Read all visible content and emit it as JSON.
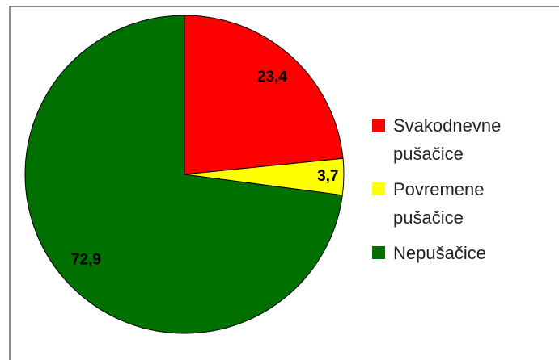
{
  "chart_data": {
    "type": "pie",
    "categories": [
      "Svakodnevne pušačice",
      "Povremene pušačice",
      "Nepušačice"
    ],
    "values": [
      23.4,
      3.7,
      72.9
    ],
    "value_labels": [
      "23,4",
      "3,7",
      "72,9"
    ],
    "colors": [
      "#ff0000",
      "#ffff00",
      "#007000"
    ]
  }
}
